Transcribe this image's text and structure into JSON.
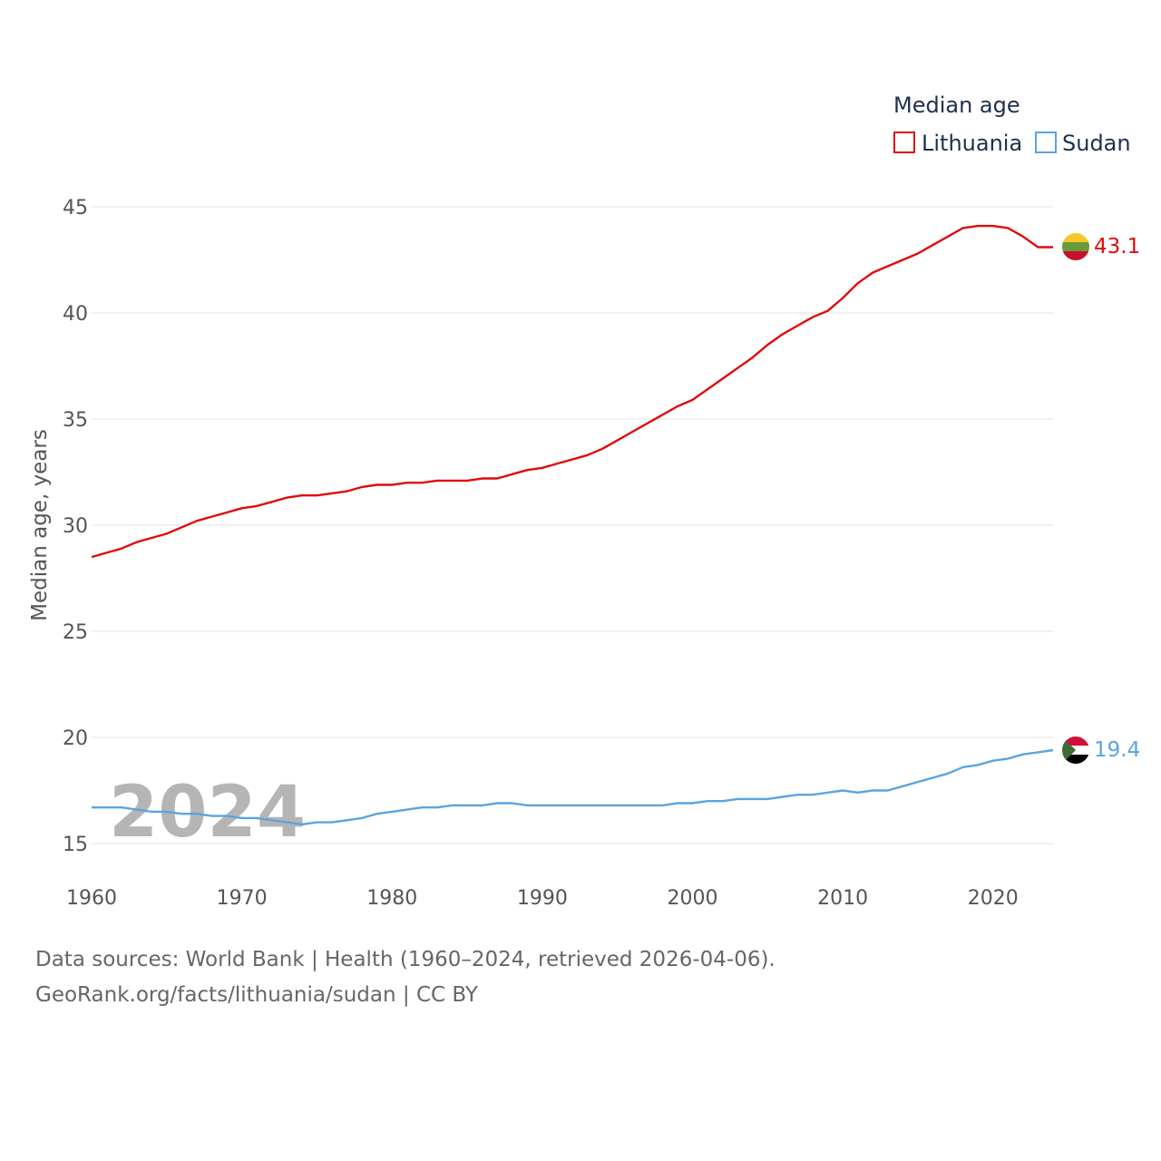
{
  "chart_data": {
    "type": "line",
    "title": "",
    "xlabel": "",
    "ylabel": "Median age, years",
    "legend_title": "Median age",
    "legend_position": "top-right",
    "xlim": [
      1960,
      2024
    ],
    "ylim": [
      15,
      45
    ],
    "x_ticks": [
      1960,
      1970,
      1980,
      1990,
      2000,
      2010,
      2020
    ],
    "y_ticks": [
      15,
      20,
      25,
      30,
      35,
      40,
      45
    ],
    "grid": true,
    "year_label": "2024",
    "x": [
      1960,
      1961,
      1962,
      1963,
      1964,
      1965,
      1966,
      1967,
      1968,
      1969,
      1970,
      1971,
      1972,
      1973,
      1974,
      1975,
      1976,
      1977,
      1978,
      1979,
      1980,
      1981,
      1982,
      1983,
      1984,
      1985,
      1986,
      1987,
      1988,
      1989,
      1990,
      1991,
      1992,
      1993,
      1994,
      1995,
      1996,
      1997,
      1998,
      1999,
      2000,
      2001,
      2002,
      2003,
      2004,
      2005,
      2006,
      2007,
      2008,
      2009,
      2010,
      2011,
      2012,
      2013,
      2014,
      2015,
      2016,
      2017,
      2018,
      2019,
      2020,
      2021,
      2022,
      2023,
      2024
    ],
    "series": [
      {
        "name": "Lithuania",
        "color": "#e00b0b",
        "end_label": "43.1",
        "flag": "lithuania-flag",
        "values": [
          28.5,
          28.7,
          28.9,
          29.2,
          29.4,
          29.6,
          29.9,
          30.2,
          30.4,
          30.6,
          30.8,
          30.9,
          31.1,
          31.3,
          31.4,
          31.4,
          31.5,
          31.6,
          31.8,
          31.9,
          31.9,
          32.0,
          32.0,
          32.1,
          32.1,
          32.1,
          32.2,
          32.2,
          32.4,
          32.6,
          32.7,
          32.9,
          33.1,
          33.3,
          33.6,
          34.0,
          34.4,
          34.8,
          35.2,
          35.6,
          35.9,
          36.4,
          36.9,
          37.4,
          37.9,
          38.5,
          39.0,
          39.4,
          39.8,
          40.1,
          40.7,
          41.4,
          41.9,
          42.2,
          42.5,
          42.8,
          43.2,
          43.6,
          44.0,
          44.1,
          44.1,
          44.0,
          43.6,
          43.1,
          43.1
        ]
      },
      {
        "name": "Sudan",
        "color": "#5aa4e0",
        "end_label": "19.4",
        "flag": "sudan-flag",
        "values": [
          16.7,
          16.7,
          16.7,
          16.6,
          16.5,
          16.5,
          16.4,
          16.4,
          16.3,
          16.3,
          16.2,
          16.2,
          16.1,
          16.0,
          15.9,
          16.0,
          16.0,
          16.1,
          16.2,
          16.4,
          16.5,
          16.6,
          16.7,
          16.7,
          16.8,
          16.8,
          16.8,
          16.9,
          16.9,
          16.8,
          16.8,
          16.8,
          16.8,
          16.8,
          16.8,
          16.8,
          16.8,
          16.8,
          16.8,
          16.9,
          16.9,
          17.0,
          17.0,
          17.1,
          17.1,
          17.1,
          17.2,
          17.3,
          17.3,
          17.4,
          17.5,
          17.4,
          17.5,
          17.5,
          17.7,
          17.9,
          18.1,
          18.3,
          18.6,
          18.7,
          18.9,
          19.0,
          19.2,
          19.3,
          19.4
        ]
      }
    ]
  },
  "footer": {
    "line1": "Data sources: World Bank | Health (1960–2024, retrieved 2026-04-06).",
    "line2": "GeoRank.org/facts/lithuania/sudan | CC BY"
  },
  "colors": {
    "grid": "#e6e6e6",
    "tick_text": "#555555",
    "legend_text": "#1f2f4d",
    "watermark": "#b5b5b5"
  }
}
